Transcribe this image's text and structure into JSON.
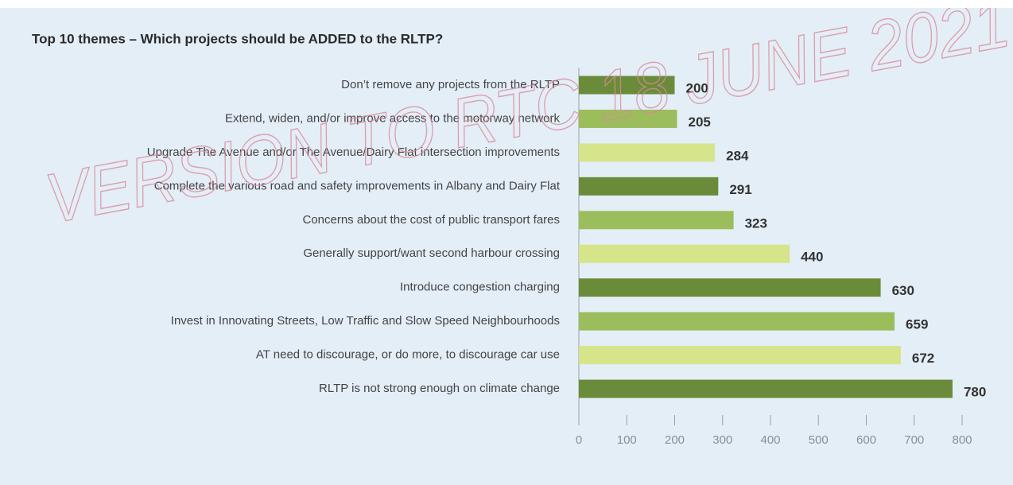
{
  "chart_data": {
    "type": "bar",
    "orientation": "horizontal",
    "title": "Top 10 themes – Which projects should be ADDED to the RLTP?",
    "watermark": "VERSION TO RTC 18 JUNE 2021",
    "categories": [
      "Don’t remove any projects from the RLTP",
      "Extend, widen, and/or improve access to the motorway network",
      "Upgrade The Avenue and/or The Avenue/Dairy Flat intersection improvements",
      "Complete the various road and safety improvements in Albany and Dairy Flat",
      "Concerns about the cost of public transport fares",
      "Generally support/want second harbour crossing",
      "Introduce congestion charging",
      "Invest in Innovating Streets, Low Traffic and Slow Speed Neighbourhoods",
      "AT need to discourage, or do more, to discourage car use",
      "RLTP is not strong enough on climate change"
    ],
    "values": [
      200,
      205,
      284,
      291,
      323,
      440,
      630,
      659,
      672,
      780
    ],
    "colors": [
      "#6a8c3a",
      "#9bbd5c",
      "#d6e48a",
      "#6a8c3a",
      "#9bbd5c",
      "#d6e48a",
      "#6a8c3a",
      "#9bbd5c",
      "#d6e48a",
      "#6a8c3a"
    ],
    "xlim": [
      0,
      800
    ],
    "xticks": [
      0,
      100,
      200,
      300,
      400,
      500,
      600,
      700,
      800
    ],
    "grid": false
  }
}
